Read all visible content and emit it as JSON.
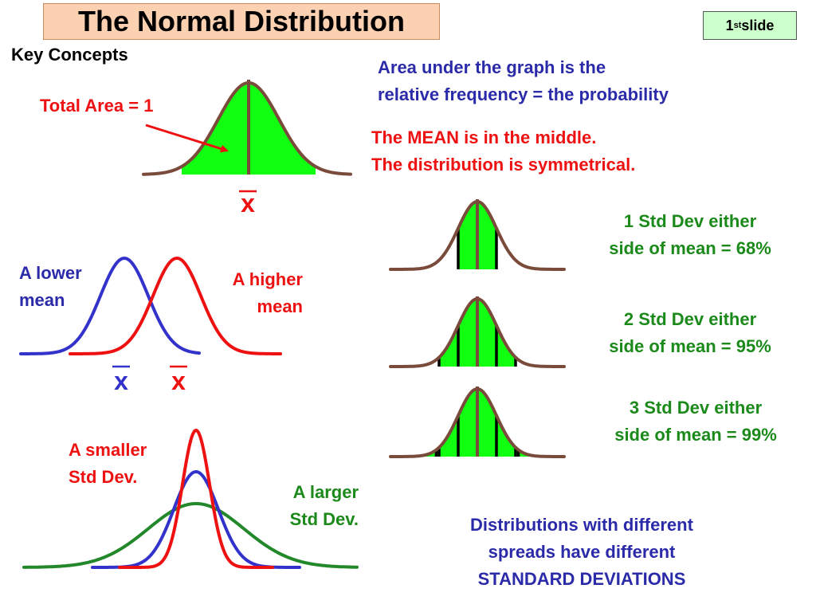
{
  "title": "The Normal Distribution",
  "slide_badge": {
    "prefix": "1",
    "sup": "st",
    "suffix": " slide"
  },
  "key_concepts": "Key Concepts",
  "total_area": "Total Area = 1",
  "area_text": {
    "line1": "Area under the graph is the",
    "line2": "relative frequency = the probability"
  },
  "mean_text": {
    "line1": "The MEAN is in the middle.",
    "line2": "The distribution is symmetrical."
  },
  "mean_symbol": "x",
  "lower_mean": {
    "line1": "A lower",
    "line2": "mean"
  },
  "higher_mean": {
    "line1": "A higher",
    "line2": "mean"
  },
  "std1": {
    "line1": "1 Std Dev either",
    "line2": "side of mean = 68%"
  },
  "std2": {
    "line1": "2 Std Dev either",
    "line2": "side of mean = 95%"
  },
  "std3": {
    "line1": "3 Std Dev either",
    "line2": "side of mean = 99%"
  },
  "smaller_sd": {
    "line1": "A smaller",
    "line2": "Std Dev."
  },
  "larger_sd": {
    "line1": "A larger",
    "line2": "Std Dev."
  },
  "spread_text": {
    "line1": "Distributions with different",
    "line2": "spreads have different",
    "line3": "STANDARD DEVIATIONS"
  },
  "colors": {
    "curve": "#7a4a3a",
    "fill": "#11ff11",
    "red": "#ee1111",
    "blue": "#3333cc",
    "green": "#22882a",
    "text_blue": "#2b2baa",
    "text_green": "#1b8a1b"
  }
}
